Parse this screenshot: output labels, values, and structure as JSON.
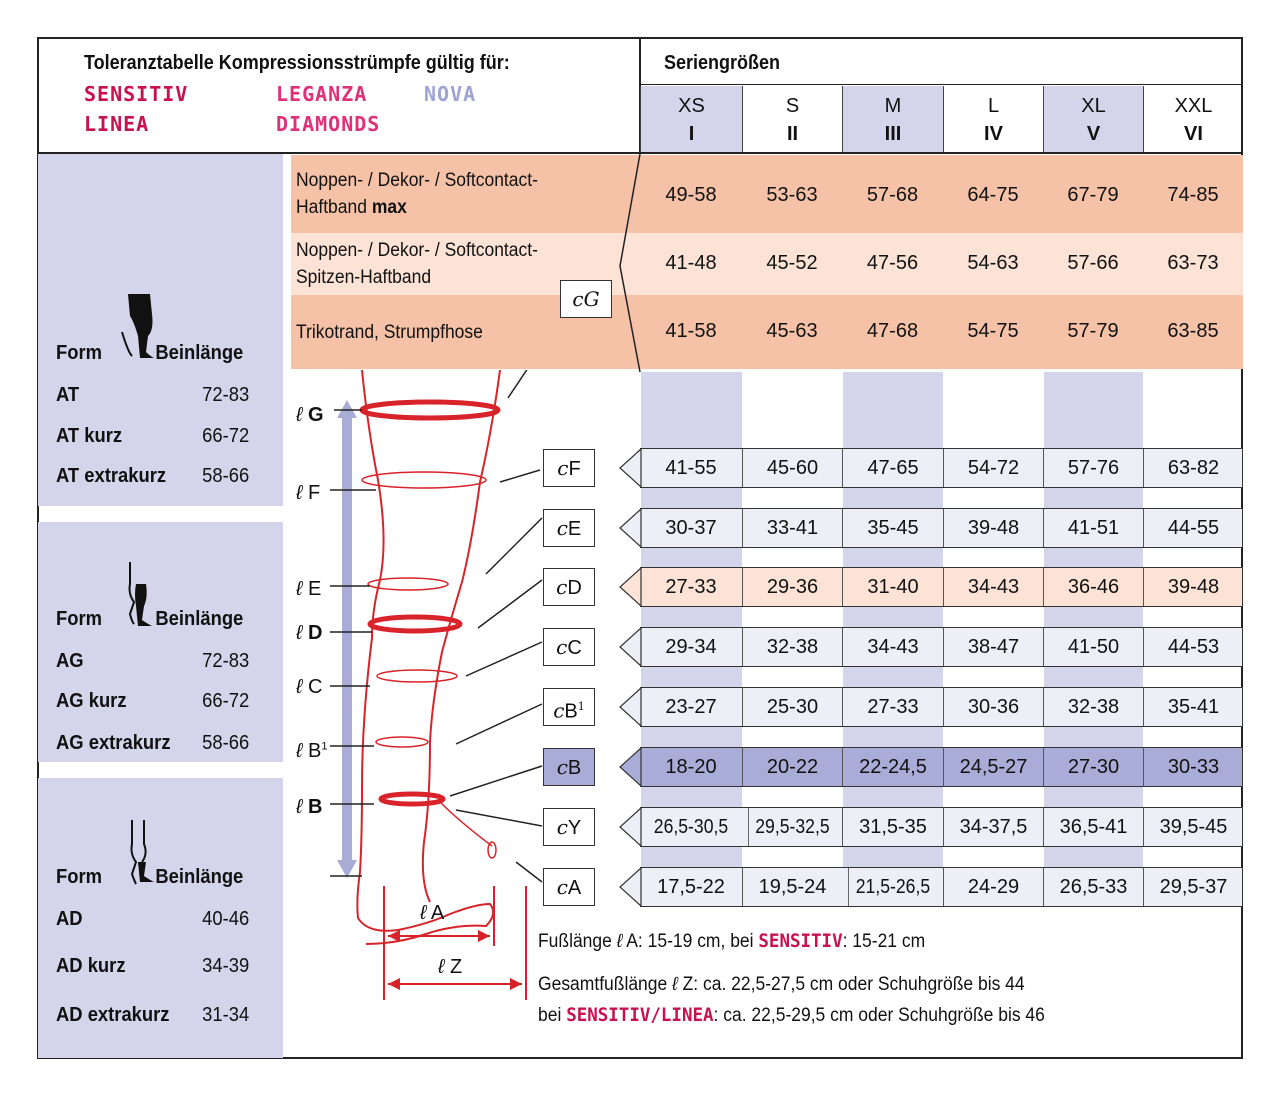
{
  "header": {
    "title": "Toleranztabelle Kompressionsstrümpfe gültig für:",
    "brands": [
      {
        "name": "SENSITIV",
        "color": "#c8124e"
      },
      {
        "name": "LEGANZA",
        "color": "#e0307a"
      },
      {
        "name": "NOVA",
        "color": "#9ea4d4"
      },
      {
        "name": "LINEA",
        "color": "#c8124e"
      },
      {
        "name": "DIAMONDS",
        "color": "#e0307a"
      }
    ],
    "series_title": "Seriengrößen"
  },
  "sizes": [
    {
      "code": "XS",
      "roman": "I"
    },
    {
      "code": "S",
      "roman": "II"
    },
    {
      "code": "M",
      "roman": "III"
    },
    {
      "code": "L",
      "roman": "IV"
    },
    {
      "code": "XL",
      "roman": "V"
    },
    {
      "code": "XXL",
      "roman": "VI"
    }
  ],
  "top_bands": [
    {
      "label_line1": "Noppen- / Dekor- / Softcontact-",
      "label_line2": "Haftband ",
      "label_bold": "max",
      "values": [
        "49-58",
        "53-63",
        "57-68",
        "64-75",
        "67-79",
        "74-85"
      ]
    },
    {
      "label_line1": "Noppen- / Dekor- / Softcontact-",
      "label_line2": "Spitzen-Haftband",
      "label_bold": "",
      "values": [
        "41-48",
        "45-52",
        "47-56",
        "54-63",
        "57-66",
        "63-73"
      ]
    },
    {
      "label_line1": "Trikotrand, Strumpfhose",
      "label_line2": "",
      "label_bold": "",
      "values": [
        "41-58",
        "45-63",
        "47-68",
        "54-75",
        "57-79",
        "63-85"
      ]
    }
  ],
  "measure_rows": [
    {
      "key": "F",
      "sup": "",
      "values": [
        "41-55",
        "45-60",
        "47-65",
        "54-72",
        "57-76",
        "63-82"
      ],
      "style": "light"
    },
    {
      "key": "E",
      "sup": "",
      "values": [
        "30-37",
        "33-41",
        "35-45",
        "39-48",
        "41-51",
        "44-55"
      ],
      "style": "light"
    },
    {
      "key": "D",
      "sup": "",
      "values": [
        "27-33",
        "29-36",
        "31-40",
        "34-43",
        "36-46",
        "39-48"
      ],
      "style": "peach"
    },
    {
      "key": "C",
      "sup": "",
      "values": [
        "29-34",
        "32-38",
        "34-43",
        "38-47",
        "41-50",
        "44-53"
      ],
      "style": "light"
    },
    {
      "key": "B",
      "sup": "1",
      "values": [
        "23-27",
        "25-30",
        "27-33",
        "30-36",
        "32-38",
        "35-41"
      ],
      "style": "light"
    },
    {
      "key": "B",
      "sup": "",
      "values": [
        "18-20",
        "20-22",
        "22-24,5",
        "24,5-27",
        "27-30",
        "30-33"
      ],
      "style": "dark"
    },
    {
      "key": "Y",
      "sup": "",
      "values": [
        "26,5-30,5",
        "29,5-32,5",
        "31,5-35",
        "34-37,5",
        "36,5-41",
        "39,5-45"
      ],
      "style": "light"
    },
    {
      "key": "A",
      "sup": "",
      "values": [
        "17,5-22",
        "19,5-24",
        "21,5-26,5",
        "24-29",
        "26,5-33",
        "29,5-37"
      ],
      "style": "light"
    }
  ],
  "gbox": {
    "key": "G"
  },
  "leg_labels": [
    {
      "key": "G",
      "sup": "",
      "bold": true
    },
    {
      "key": "F",
      "sup": "",
      "bold": false
    },
    {
      "key": "E",
      "sup": "",
      "bold": false
    },
    {
      "key": "D",
      "sup": "",
      "bold": true
    },
    {
      "key": "C",
      "sup": "",
      "bold": false
    },
    {
      "key": "B",
      "sup": "1",
      "bold": false
    },
    {
      "key": "B",
      "sup": "",
      "bold": true
    }
  ],
  "foot_labels": {
    "a": "A",
    "z": "Z"
  },
  "circ_symbol": "c",
  "len_symbol": "ℓ",
  "forms": [
    {
      "form_label": "Form",
      "length_label": "Beinlänge",
      "rows": [
        [
          "AT",
          "72-83"
        ],
        [
          "AT kurz",
          "66-72"
        ],
        [
          "AT extrakurz",
          "58-66"
        ]
      ]
    },
    {
      "form_label": "Form",
      "length_label": "Beinlänge",
      "rows": [
        [
          "AG",
          "72-83"
        ],
        [
          "AG kurz",
          "66-72"
        ],
        [
          "AG extrakurz",
          "58-66"
        ]
      ]
    },
    {
      "form_label": "Form",
      "length_label": "Beinlänge",
      "rows": [
        [
          "AD",
          "40-46"
        ],
        [
          "AD kurz",
          "34-39"
        ],
        [
          "AD extrakurz",
          "31-34"
        ]
      ]
    }
  ],
  "notes": {
    "foot_prefix": "Fußlänge ",
    "foot_mid": " A: 15-19 cm, bei ",
    "foot_brand": "SENSITIV",
    "foot_suffix": ": 15-21 cm",
    "total_prefix": "Gesamtfußlänge ",
    "total_mid": " Z: ca. 22,5-27,5 cm oder Schuhgröße bis 44",
    "bei": "bei ",
    "total_brand": "SENSITIV/LINEA",
    "total_suffix": ": ca. 22,5-29,5 cm oder Schuhgröße bis 46"
  },
  "colors": {
    "peach_dark": "#f5c2a8",
    "peach_light": "#fce3d6",
    "lavender": "#d4d5ea",
    "lavender_dark": "#a9acd6",
    "red": "#d8232a"
  }
}
